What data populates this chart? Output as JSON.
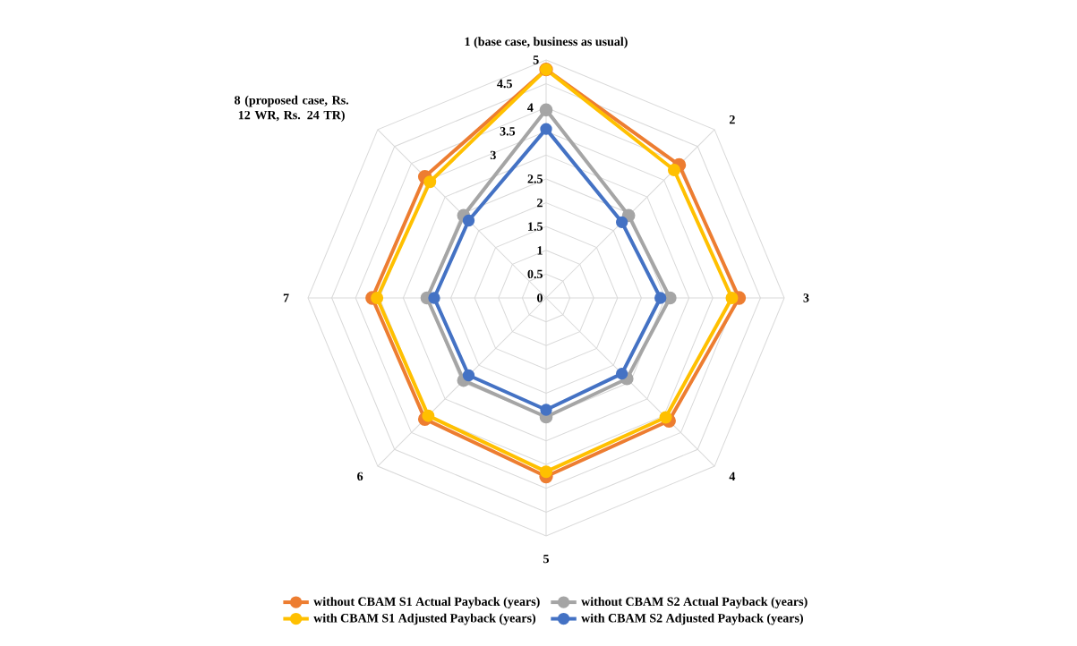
{
  "chart_data": {
    "type": "radar",
    "categories": [
      "1 (base case, business as usual)",
      "2",
      "3",
      "4",
      "5",
      "6",
      "7",
      "8 (proposed case, Rs. 12 WR, Rs. 24 TR)"
    ],
    "series": [
      {
        "name": "without CBAM S1 Actual Payback (years)",
        "color": "#ed7d31",
        "values": [
          4.8,
          3.95,
          4.05,
          3.65,
          3.75,
          3.6,
          3.65,
          3.6
        ]
      },
      {
        "name": "without CBAM S2 Actual Payback (years)",
        "color": "#a5a5a5",
        "values": [
          3.95,
          2.45,
          2.6,
          2.4,
          2.5,
          2.45,
          2.5,
          2.45
        ]
      },
      {
        "name": "with CBAM S1 Adjusted Payback (years)",
        "color": "#ffc000",
        "values": [
          4.8,
          3.8,
          3.9,
          3.55,
          3.65,
          3.5,
          3.55,
          3.45
        ]
      },
      {
        "name": "with CBAM S2 Adjusted Payback (years)",
        "color": "#4472c4",
        "values": [
          3.55,
          2.25,
          2.4,
          2.25,
          2.35,
          2.3,
          2.35,
          2.3
        ]
      }
    ],
    "ylim": [
      0,
      5
    ],
    "yticks": [
      0,
      0.5,
      1,
      1.5,
      2,
      2.5,
      3,
      3.5,
      4,
      4.5,
      5
    ],
    "grid": true,
    "legend": "bottom",
    "marker": "circle",
    "line_style": "solid"
  }
}
